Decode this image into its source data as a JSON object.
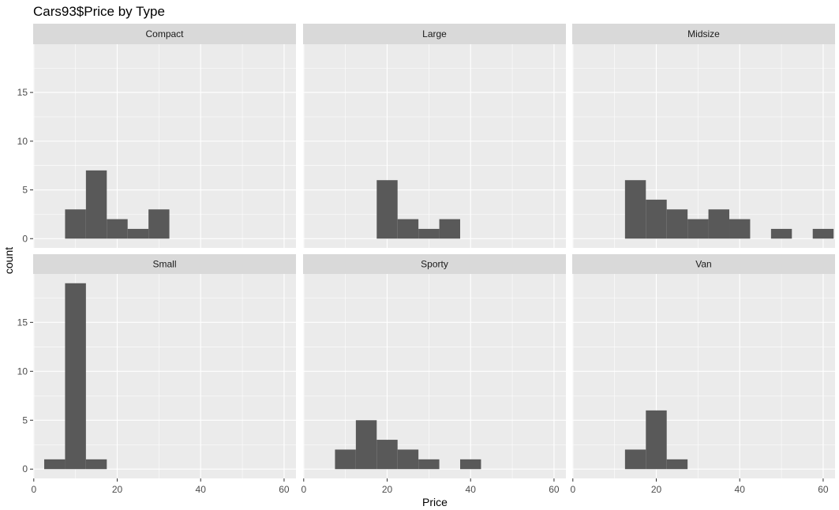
{
  "chart_data": {
    "type": "bar",
    "title": "Cars93$Price by Type",
    "xlabel": "Price",
    "ylabel": "count",
    "xlim": [
      -0.15,
      62.85
    ],
    "ylim": [
      -0.95,
      19.95
    ],
    "x_ticks": [
      0,
      20,
      40,
      60
    ],
    "y_ticks": [
      0,
      5,
      10,
      15
    ],
    "binwidth": 5,
    "layout": {
      "rows": 2,
      "cols": 3
    },
    "bar_color": "#595959",
    "panel_color": "#ebebeb",
    "strip_color": "#d9d9d9",
    "grid": true,
    "panels": [
      {
        "label": "Compact",
        "bins": [
          [
            10,
            3
          ],
          [
            15,
            7
          ],
          [
            20,
            2
          ],
          [
            25,
            1
          ],
          [
            30,
            3
          ]
        ]
      },
      {
        "label": "Large",
        "bins": [
          [
            20,
            6
          ],
          [
            25,
            2
          ],
          [
            30,
            1
          ],
          [
            35,
            2
          ]
        ]
      },
      {
        "label": "Midsize",
        "bins": [
          [
            15,
            6
          ],
          [
            20,
            4
          ],
          [
            25,
            3
          ],
          [
            30,
            2
          ],
          [
            35,
            3
          ],
          [
            40,
            2
          ],
          [
            50,
            1
          ],
          [
            60,
            1
          ]
        ]
      },
      {
        "label": "Small",
        "bins": [
          [
            5,
            1
          ],
          [
            10,
            19
          ],
          [
            15,
            1
          ]
        ]
      },
      {
        "label": "Sporty",
        "bins": [
          [
            10,
            2
          ],
          [
            15,
            5
          ],
          [
            20,
            3
          ],
          [
            25,
            2
          ],
          [
            30,
            1
          ],
          [
            40,
            1
          ]
        ]
      },
      {
        "label": "Van",
        "bins": [
          [
            15,
            2
          ],
          [
            20,
            6
          ],
          [
            25,
            1
          ]
        ]
      }
    ]
  }
}
